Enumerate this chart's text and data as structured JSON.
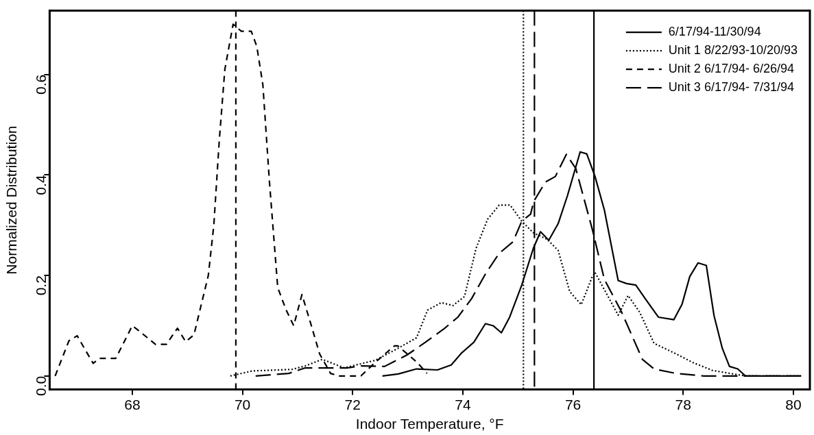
{
  "chart_data": {
    "type": "line",
    "xlabel": "Indoor Temperature, °F",
    "ylabel": "Normalized Distribution",
    "xlim": [
      66.5,
      80.3
    ],
    "xticks": [
      68,
      70,
      72,
      74,
      76,
      78,
      80
    ],
    "ylim": [
      -0.027,
      0.727
    ],
    "yticks": [
      {
        "value": 0,
        "label": "0.0"
      },
      0.2,
      0.4,
      0.6
    ],
    "grid": false,
    "legend": "top right",
    "marker": "none",
    "series": [
      {
        "name": "6/17/94-11/30/94",
        "color": "#000000",
        "line_style": "solid",
        "x": [
          72.54,
          72.83,
          73.16,
          73.54,
          73.79,
          73.98,
          74.2,
          74.41,
          74.55,
          74.7,
          74.85,
          75.07,
          75.28,
          75.41,
          75.56,
          75.73,
          75.9,
          76.13,
          76.25,
          76.4,
          76.57,
          76.82,
          76.97,
          77.14,
          77.31,
          77.55,
          77.83,
          77.98,
          78.12,
          78.27,
          78.42,
          78.56,
          78.71,
          78.84,
          78.99,
          79.13,
          80.14
        ],
        "values": [
          0.0,
          0.004,
          0.014,
          0.012,
          0.022,
          0.046,
          0.067,
          0.104,
          0.1,
          0.086,
          0.117,
          0.181,
          0.254,
          0.287,
          0.27,
          0.303,
          0.359,
          0.446,
          0.442,
          0.397,
          0.33,
          0.19,
          0.184,
          0.181,
          0.154,
          0.117,
          0.112,
          0.143,
          0.198,
          0.225,
          0.22,
          0.12,
          0.055,
          0.019,
          0.014,
          0.0,
          0.0
        ]
      },
      {
        "name": "Unit 1 8/22/93-10/20/93",
        "color": "#000000",
        "line_style": "dotted",
        "x": [
          69.78,
          70.18,
          70.9,
          71.14,
          71.45,
          71.85,
          72.25,
          72.41,
          72.79,
          73.16,
          73.36,
          73.61,
          73.82,
          74.03,
          74.24,
          74.45,
          74.66,
          74.86,
          75.07,
          75.28,
          75.53,
          75.73,
          75.94,
          76.15,
          76.34,
          76.4,
          76.82,
          77.0,
          77.21,
          77.47,
          77.87,
          78.17,
          78.53,
          79.13,
          80.14
        ],
        "values": [
          0.0,
          0.01,
          0.013,
          0.02,
          0.033,
          0.016,
          0.027,
          0.031,
          0.053,
          0.076,
          0.131,
          0.146,
          0.14,
          0.158,
          0.254,
          0.312,
          0.34,
          0.34,
          0.308,
          0.285,
          0.272,
          0.25,
          0.168,
          0.142,
          0.195,
          0.206,
          0.121,
          0.16,
          0.127,
          0.065,
          0.044,
          0.027,
          0.011,
          0.0,
          0.0
        ]
      },
      {
        "name": "Unit 2 6/17/94- 6/26/94",
        "color": "#000000",
        "line_style": "dashed",
        "x": [
          66.6,
          66.85,
          67.0,
          67.13,
          67.29,
          67.4,
          67.7,
          68.0,
          68.12,
          68.42,
          68.62,
          68.82,
          68.97,
          69.12,
          69.38,
          69.48,
          69.58,
          69.68,
          69.83,
          69.98,
          70.16,
          70.26,
          70.37,
          70.49,
          70.64,
          70.79,
          70.93,
          71.08,
          71.24,
          71.4,
          71.6,
          71.75,
          72.15,
          72.41,
          72.76,
          72.82,
          73.17,
          73.35
        ],
        "values": [
          0.0,
          0.07,
          0.08,
          0.055,
          0.025,
          0.035,
          0.035,
          0.1,
          0.09,
          0.063,
          0.063,
          0.095,
          0.068,
          0.082,
          0.2,
          0.3,
          0.47,
          0.61,
          0.7,
          0.686,
          0.686,
          0.656,
          0.58,
          0.386,
          0.176,
          0.132,
          0.1,
          0.162,
          0.104,
          0.044,
          0.005,
          0.0,
          0.0,
          0.027,
          0.06,
          0.06,
          0.027,
          0.005
        ]
      },
      {
        "name": "Unit 3 6/17/94- 7/31/94",
        "color": "#000000",
        "line_style": "dashed",
        "x": [
          70.24,
          70.84,
          71.14,
          71.9,
          72.15,
          72.58,
          72.99,
          73.32,
          73.66,
          73.91,
          74.16,
          74.41,
          74.66,
          74.91,
          75.07,
          75.23,
          75.29,
          75.5,
          75.68,
          75.88,
          76.05,
          76.35,
          76.57,
          76.87,
          77.26,
          77.47,
          77.87,
          78.37,
          79.13,
          80.14
        ],
        "values": [
          0.0,
          0.005,
          0.016,
          0.016,
          0.02,
          0.019,
          0.042,
          0.067,
          0.094,
          0.117,
          0.154,
          0.203,
          0.244,
          0.267,
          0.308,
          0.322,
          0.348,
          0.386,
          0.397,
          0.441,
          0.413,
          0.292,
          0.192,
          0.13,
          0.033,
          0.014,
          0.005,
          0.0,
          0.0,
          0.0
        ]
      }
    ],
    "ref_lines": [
      {
        "axis": "x",
        "value": 76.38,
        "color": "#000000",
        "line_style": "solid"
      },
      {
        "axis": "x",
        "value": 75.1,
        "color": "#000000",
        "line_style": "dotted"
      },
      {
        "axis": "x",
        "value": 69.88,
        "color": "#000000",
        "line_style": "dashed"
      },
      {
        "axis": "x",
        "value": 75.3,
        "color": "#000000",
        "line_style": "dashed"
      }
    ]
  }
}
